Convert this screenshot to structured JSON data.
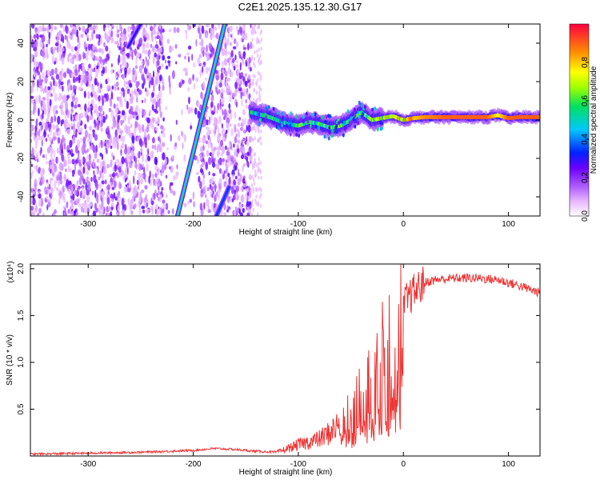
{
  "title": "C2E1.2025.135.12.30.G17",
  "chart_data": [
    {
      "type": "heatmap",
      "xlabel": "Height of straight line (km)",
      "ylabel": "Frequency (Hz)",
      "xlim": [
        -355,
        130
      ],
      "ylim": [
        -50,
        50
      ],
      "xticks": [
        -300,
        -200,
        -100,
        0,
        100
      ],
      "yticks": [
        -40,
        -20,
        0,
        20,
        40
      ],
      "colorbar": {
        "label": "Normalized spectral amplitude",
        "range": [
          0.0,
          1.0
        ],
        "ticks": [
          0.0,
          0.2,
          0.4,
          0.6,
          0.8
        ],
        "colors": [
          "#ffffff",
          "#c084ff",
          "#7a00ff",
          "#0033ff",
          "#00c8ff",
          "#00e000",
          "#ffff00",
          "#ff8000",
          "#ff0040"
        ]
      },
      "features": [
        {
          "x": [
            -215,
            -170
          ],
          "y": [
            -50,
            50
          ],
          "amplitude": 0.45
        },
        {
          "x": [
            -262,
            -250
          ],
          "y": [
            38,
            50
          ],
          "amplitude": 0.3
        },
        {
          "x": [
            -178,
            -166
          ],
          "y": [
            -50,
            -35
          ],
          "amplitude": 0.35
        }
      ],
      "ridge": {
        "x": [
          -145,
          -130,
          -120,
          -110,
          -100,
          -90,
          -80,
          -70,
          -60,
          -50,
          -40,
          -30,
          -20,
          -10,
          0,
          10,
          20,
          40,
          60,
          80,
          90,
          100,
          110,
          130
        ],
        "y": [
          4,
          2,
          0,
          -2,
          -3,
          -1,
          -2,
          -4,
          -3,
          0,
          4,
          0,
          1,
          2,
          0,
          1,
          1.5,
          1.5,
          1.5,
          1.5,
          2.5,
          1,
          1.5,
          1.5
        ],
        "amplitude": [
          0.5,
          0.55,
          0.5,
          0.5,
          0.55,
          0.55,
          0.6,
          0.55,
          0.6,
          0.55,
          0.6,
          0.65,
          0.7,
          0.7,
          0.8,
          0.8,
          0.85,
          0.9,
          0.9,
          0.9,
          0.75,
          0.9,
          0.9,
          0.9
        ]
      }
    },
    {
      "type": "line",
      "xlabel": "Height of straight line (km)",
      "ylabel": "SNR (10 * v/v)",
      "y_multiplier": "(x10⁴)",
      "xlim": [
        -355,
        130
      ],
      "ylim": [
        0,
        2.05
      ],
      "xticks": [
        -300,
        -200,
        -100,
        0,
        100
      ],
      "yticks": [
        0.5,
        1.0,
        1.5,
        2.0
      ],
      "color": "#ee3333",
      "series": [
        {
          "x": [
            -355,
            -300,
            -250,
            -200,
            -180,
            -160,
            -140,
            -120,
            -110,
            -100,
            -90,
            -80,
            -70,
            -60,
            -50,
            -40,
            -30,
            -20,
            -10,
            -5,
            0,
            10,
            20,
            30,
            50,
            70,
            90,
            100,
            110,
            120,
            130
          ],
          "y": [
            0.02,
            0.03,
            0.04,
            0.06,
            0.08,
            0.07,
            0.05,
            0.04,
            0.08,
            0.12,
            0.15,
            0.18,
            0.25,
            0.35,
            0.5,
            0.7,
            0.9,
            1.1,
            1.3,
            1.5,
            1.62,
            1.75,
            1.85,
            1.88,
            1.9,
            1.9,
            1.88,
            1.85,
            1.82,
            1.78,
            1.74
          ]
        }
      ]
    }
  ]
}
